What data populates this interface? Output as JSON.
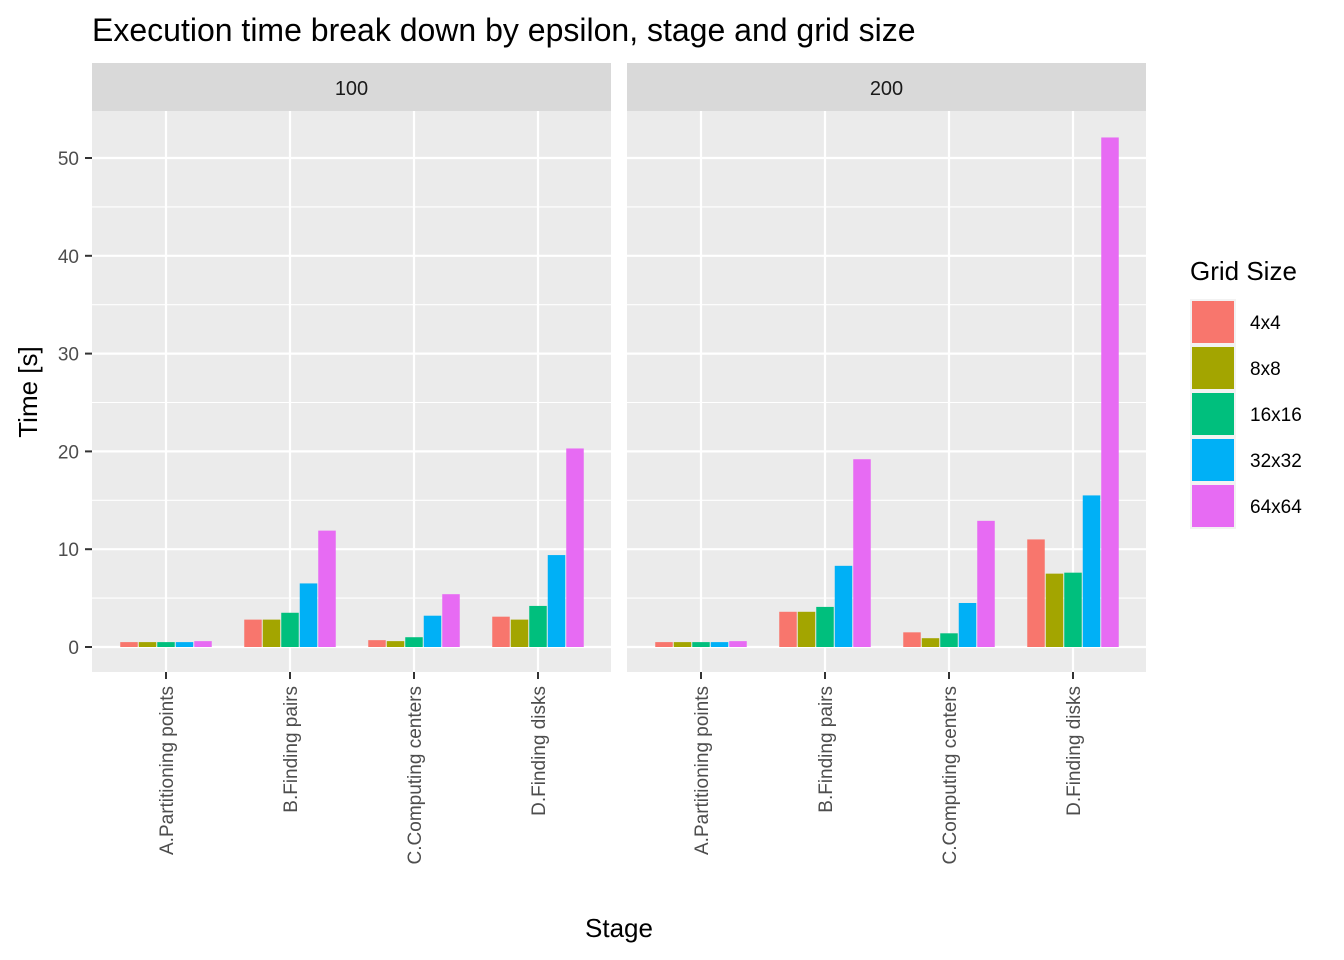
{
  "chart_data": {
    "type": "bar",
    "title": "Execution time break down by epsilon, stage and grid size",
    "xlabel": "Stage",
    "ylabel": "Time [s]",
    "ylim": [
      0,
      55
    ],
    "yticks": [
      0,
      10,
      20,
      30,
      40,
      50
    ],
    "grid": true,
    "legend_position": "right",
    "legend_title": "Grid Size",
    "categories": [
      "A.Partitioning points",
      "B.Finding pairs",
      "C.Computing centers",
      "D.Finding disks"
    ],
    "series_names": [
      "4x4",
      "8x8",
      "16x16",
      "32x32",
      "64x64"
    ],
    "colors": [
      "#F8766D",
      "#A3A500",
      "#00BF7D",
      "#00B0F6",
      "#E76BF3"
    ],
    "panels": [
      {
        "label": "100",
        "series": [
          {
            "name": "4x4",
            "values": [
              0.5,
              2.8,
              0.7,
              3.1
            ]
          },
          {
            "name": "8x8",
            "values": [
              0.5,
              2.8,
              0.6,
              2.8
            ]
          },
          {
            "name": "16x16",
            "values": [
              0.5,
              3.5,
              1.0,
              4.2
            ]
          },
          {
            "name": "32x32",
            "values": [
              0.5,
              6.5,
              3.2,
              9.4
            ]
          },
          {
            "name": "64x64",
            "values": [
              0.6,
              11.9,
              5.4,
              20.3
            ]
          }
        ]
      },
      {
        "label": "200",
        "series": [
          {
            "name": "4x4",
            "values": [
              0.5,
              3.6,
              1.5,
              11.0
            ]
          },
          {
            "name": "8x8",
            "values": [
              0.5,
              3.6,
              0.9,
              7.5
            ]
          },
          {
            "name": "16x16",
            "values": [
              0.5,
              4.1,
              1.4,
              7.6
            ]
          },
          {
            "name": "32x32",
            "values": [
              0.5,
              8.3,
              4.5,
              15.5
            ]
          },
          {
            "name": "64x64",
            "values": [
              0.6,
              19.2,
              12.9,
              52.1
            ]
          }
        ]
      }
    ]
  }
}
